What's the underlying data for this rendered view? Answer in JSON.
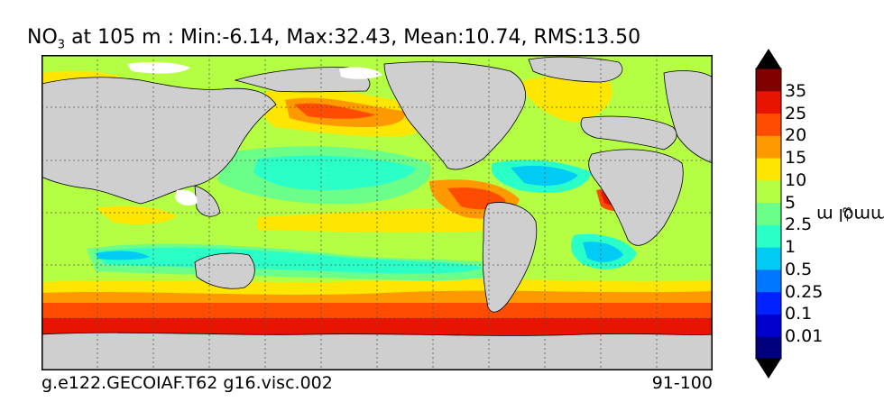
{
  "title": {
    "species": "NO",
    "subscript": "3",
    "depth_text": "at 105 m",
    "stats_text": ": Min:-6.14, Max:32.43, Mean:10.74, RMS:13.50"
  },
  "stats": {
    "min": -6.14,
    "max": 32.43,
    "mean": 10.74,
    "rms": 13.5
  },
  "footer": {
    "case_name": "g.e122.GECOIAF.T62 g16.visc.002",
    "years": "91-100"
  },
  "colorbar": {
    "unit_base": "mmol m",
    "unit_exp": "−3",
    "labels": [
      "35",
      "25",
      "20",
      "15",
      "10",
      "5",
      "2.5",
      "1",
      "0.5",
      "0.25",
      "0.1",
      "0.01"
    ],
    "colors": [
      "#00007f",
      "#0000cc",
      "#0022ff",
      "#0077ff",
      "#00ccf5",
      "#2affc8",
      "#6bff8a",
      "#b4ff43",
      "#ffe600",
      "#ff9900",
      "#ff4c00",
      "#e81300",
      "#800000"
    ],
    "under_color": "#00007f",
    "over_color": "#000000"
  },
  "map": {
    "land_color": "#cfcfcf",
    "ice_color": "#ffffff",
    "grid": "on",
    "region": "global"
  }
}
